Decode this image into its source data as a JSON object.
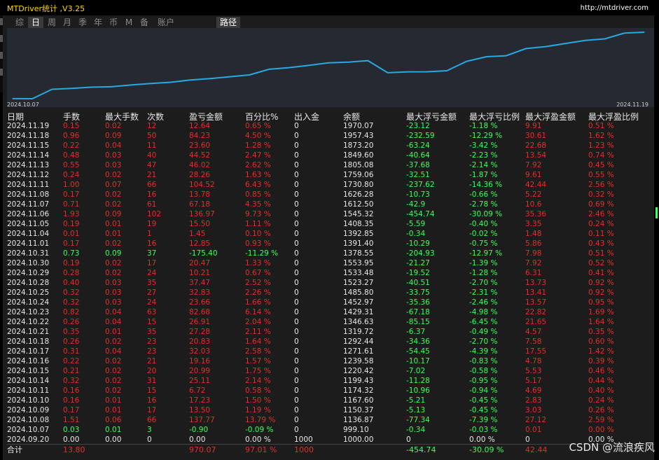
{
  "app": {
    "title": "MTDriver统计 ,V3.25",
    "url": "http://mtdriver.com",
    "watermark": "CSDN @流浪疾风"
  },
  "tabs": [
    {
      "label": "综",
      "active": false
    },
    {
      "label": "日",
      "active": true
    },
    {
      "label": "周",
      "active": false
    },
    {
      "label": "月",
      "active": false
    },
    {
      "label": "季",
      "active": false
    },
    {
      "label": "年",
      "active": false
    },
    {
      "label": "币",
      "active": false
    },
    {
      "label": "M",
      "active": false
    },
    {
      "label": "备",
      "active": false
    },
    {
      "label": "账户",
      "active": false
    },
    {
      "label": "路径",
      "active": true
    }
  ],
  "chart_data": {
    "type": "line",
    "x_start_label": "2024.10.07",
    "x_end_label": "2024.11.19",
    "x": [
      "2024.09.20",
      "2024.10.07",
      "2024.10.08",
      "2024.10.09",
      "2024.10.10",
      "2024.10.11",
      "2024.10.14",
      "2024.10.15",
      "2024.10.16",
      "2024.10.17",
      "2024.10.18",
      "2024.10.21",
      "2024.10.22",
      "2024.10.23",
      "2024.10.24",
      "2024.10.25",
      "2024.10.28",
      "2024.10.29",
      "2024.10.30",
      "2024.10.31",
      "2024.11.01",
      "2024.11.04",
      "2024.11.05",
      "2024.11.06",
      "2024.11.07",
      "2024.11.08",
      "2024.11.11",
      "2024.11.12",
      "2024.11.13",
      "2024.11.14",
      "2024.11.15",
      "2024.11.18",
      "2024.11.19"
    ],
    "values": [
      1000.0,
      999.1,
      1136.87,
      1150.37,
      1167.6,
      1174.32,
      1199.43,
      1220.42,
      1239.58,
      1271.61,
      1292.44,
      1319.72,
      1346.63,
      1429.31,
      1452.97,
      1485.8,
      1523.27,
      1533.48,
      1553.95,
      1378.55,
      1391.4,
      1392.85,
      1408.35,
      1545.32,
      1612.5,
      1626.28,
      1730.8,
      1759.06,
      1805.08,
      1849.6,
      1873.2,
      1957.43,
      1970.07
    ],
    "color": "#29a9e0"
  },
  "table": {
    "headers": [
      "日期",
      "手数",
      "最大手数",
      "次数",
      "盈亏金额",
      "百分比%",
      "出入金",
      "余额",
      "最大浮亏金额",
      "最大浮亏比例",
      "最大浮盈金额",
      "最大浮盈比例"
    ],
    "rows": [
      {
        "date": "2024.11.19",
        "lots": "0.15",
        "max_lots": "0.02",
        "count": "12",
        "pnl": "12.64",
        "pct": "0.65 %",
        "flow": "0",
        "balance": "1970.07",
        "max_dd": "-23.12",
        "max_dd_pct": "-1.18 %",
        "max_fp": "9.91",
        "max_fp_pct": "0.51 %",
        "tone": "red"
      },
      {
        "date": "2024.11.18",
        "lots": "0.96",
        "max_lots": "0.09",
        "count": "50",
        "pnl": "84.23",
        "pct": "4.50 %",
        "flow": "0",
        "balance": "1957.43",
        "max_dd": "-232.59",
        "max_dd_pct": "-12.29 %",
        "max_fp": "30.61",
        "max_fp_pct": "1.62 %",
        "tone": "red"
      },
      {
        "date": "2024.11.15",
        "lots": "0.22",
        "max_lots": "0.04",
        "count": "11",
        "pnl": "23.60",
        "pct": "1.28 %",
        "flow": "0",
        "balance": "1873.20",
        "max_dd": "-63.24",
        "max_dd_pct": "-3.42 %",
        "max_fp": "22.68",
        "max_fp_pct": "1.23 %",
        "tone": "red"
      },
      {
        "date": "2024.11.14",
        "lots": "0.48",
        "max_lots": "0.03",
        "count": "40",
        "pnl": "44.52",
        "pct": "2.47 %",
        "flow": "0",
        "balance": "1849.60",
        "max_dd": "-40.64",
        "max_dd_pct": "-2.23 %",
        "max_fp": "13.54",
        "max_fp_pct": "0.74 %",
        "tone": "red"
      },
      {
        "date": "2024.11.13",
        "lots": "0.55",
        "max_lots": "0.03",
        "count": "47",
        "pnl": "46.02",
        "pct": "2.62 %",
        "flow": "0",
        "balance": "1805.08",
        "max_dd": "-37.68",
        "max_dd_pct": "-2.14 %",
        "max_fp": "7.92",
        "max_fp_pct": "0.45 %",
        "tone": "red"
      },
      {
        "date": "2024.11.12",
        "lots": "0.24",
        "max_lots": "0.02",
        "count": "21",
        "pnl": "28.26",
        "pct": "1.63 %",
        "flow": "0",
        "balance": "1759.06",
        "max_dd": "-32.51",
        "max_dd_pct": "-1.87 %",
        "max_fp": "9.61",
        "max_fp_pct": "0.55 %",
        "tone": "red"
      },
      {
        "date": "2024.11.11",
        "lots": "1.00",
        "max_lots": "0.07",
        "count": "66",
        "pnl": "104.52",
        "pct": "6.43 %",
        "flow": "0",
        "balance": "1730.80",
        "max_dd": "-237.62",
        "max_dd_pct": "-14.36 %",
        "max_fp": "42.44",
        "max_fp_pct": "2.56 %",
        "tone": "red"
      },
      {
        "date": "2024.11.08",
        "lots": "0.17",
        "max_lots": "0.02",
        "count": "16",
        "pnl": "13.78",
        "pct": "0.85 %",
        "flow": "0",
        "balance": "1626.28",
        "max_dd": "-10.73",
        "max_dd_pct": "-0.66 %",
        "max_fp": "5.22",
        "max_fp_pct": "0.32 %",
        "tone": "red"
      },
      {
        "date": "2024.11.07",
        "lots": "0.71",
        "max_lots": "0.02",
        "count": "61",
        "pnl": "67.18",
        "pct": "4.35 %",
        "flow": "0",
        "balance": "1612.50",
        "max_dd": "-42.9",
        "max_dd_pct": "-2.78 %",
        "max_fp": "10.6",
        "max_fp_pct": "0.69 %",
        "tone": "red"
      },
      {
        "date": "2024.11.06",
        "lots": "1.93",
        "max_lots": "0.09",
        "count": "102",
        "pnl": "136.97",
        "pct": "9.73 %",
        "flow": "0",
        "balance": "1545.32",
        "max_dd": "-454.74",
        "max_dd_pct": "-30.09 %",
        "max_fp": "35.36",
        "max_fp_pct": "2.46 %",
        "tone": "red"
      },
      {
        "date": "2024.11.05",
        "lots": "0.19",
        "max_lots": "0.01",
        "count": "19",
        "pnl": "15.50",
        "pct": "1.11 %",
        "flow": "0",
        "balance": "1408.35",
        "max_dd": "-5.59",
        "max_dd_pct": "-0.40 %",
        "max_fp": "3.35",
        "max_fp_pct": "0.24 %",
        "tone": "red"
      },
      {
        "date": "2024.11.04",
        "lots": "0.01",
        "max_lots": "0.01",
        "count": "1",
        "pnl": "1.45",
        "pct": "0.10 %",
        "flow": "0",
        "balance": "1392.85",
        "max_dd": "-0.34",
        "max_dd_pct": "-0.02 %",
        "max_fp": "1.48",
        "max_fp_pct": "0.11 %",
        "tone": "red"
      },
      {
        "date": "2024.11.01",
        "lots": "0.17",
        "max_lots": "0.02",
        "count": "16",
        "pnl": "12.85",
        "pct": "0.93 %",
        "flow": "0",
        "balance": "1391.40",
        "max_dd": "-10.29",
        "max_dd_pct": "-0.75 %",
        "max_fp": "5.86",
        "max_fp_pct": "0.43 %",
        "tone": "red"
      },
      {
        "date": "2024.10.31",
        "lots": "0.73",
        "max_lots": "0.09",
        "count": "37",
        "pnl": "-175.40",
        "pct": "-11.29 %",
        "flow": "0",
        "balance": "1378.55",
        "max_dd": "-204.93",
        "max_dd_pct": "-12.97 %",
        "max_fp": "7.98",
        "max_fp_pct": "0.51 %",
        "tone": "green"
      },
      {
        "date": "2024.10.30",
        "lots": "0.19",
        "max_lots": "0.02",
        "count": "17",
        "pnl": "20.47",
        "pct": "1.33 %",
        "flow": "0",
        "balance": "1553.95",
        "max_dd": "-21.27",
        "max_dd_pct": "-1.39 %",
        "max_fp": "7.92",
        "max_fp_pct": "0.52 %",
        "tone": "red"
      },
      {
        "date": "2024.10.29",
        "lots": "0.28",
        "max_lots": "0.02",
        "count": "24",
        "pnl": "10.21",
        "pct": "0.67 %",
        "flow": "0",
        "balance": "1533.48",
        "max_dd": "-19.52",
        "max_dd_pct": "-1.28 %",
        "max_fp": "6.31",
        "max_fp_pct": "0.41 %",
        "tone": "red"
      },
      {
        "date": "2024.10.28",
        "lots": "0.40",
        "max_lots": "0.03",
        "count": "35",
        "pnl": "37.47",
        "pct": "2.52 %",
        "flow": "0",
        "balance": "1523.27",
        "max_dd": "-40.51",
        "max_dd_pct": "-2.70 %",
        "max_fp": "13.73",
        "max_fp_pct": "0.92 %",
        "tone": "red"
      },
      {
        "date": "2024.10.25",
        "lots": "0.32",
        "max_lots": "0.03",
        "count": "27",
        "pnl": "32.83",
        "pct": "2.26 %",
        "flow": "0",
        "balance": "1485.80",
        "max_dd": "-33.75",
        "max_dd_pct": "-2.31 %",
        "max_fp": "13.41",
        "max_fp_pct": "0.92 %",
        "tone": "red"
      },
      {
        "date": "2024.10.24",
        "lots": "0.32",
        "max_lots": "0.03",
        "count": "24",
        "pnl": "23.66",
        "pct": "1.66 %",
        "flow": "0",
        "balance": "1452.97",
        "max_dd": "-35.36",
        "max_dd_pct": "-2.46 %",
        "max_fp": "13.57",
        "max_fp_pct": "0.95 %",
        "tone": "red"
      },
      {
        "date": "2024.10.23",
        "lots": "0.82",
        "max_lots": "0.04",
        "count": "63",
        "pnl": "82.68",
        "pct": "6.14 %",
        "flow": "0",
        "balance": "1429.31",
        "max_dd": "-67.18",
        "max_dd_pct": "-4.98 %",
        "max_fp": "22.82",
        "max_fp_pct": "1.69 %",
        "tone": "red"
      },
      {
        "date": "2024.10.22",
        "lots": "0.26",
        "max_lots": "0.04",
        "count": "15",
        "pnl": "26.91",
        "pct": "2.04 %",
        "flow": "0",
        "balance": "1346.63",
        "max_dd": "-85.15",
        "max_dd_pct": "-6.45 %",
        "max_fp": "21.65",
        "max_fp_pct": "1.64 %",
        "tone": "red"
      },
      {
        "date": "2024.10.21",
        "lots": "0.35",
        "max_lots": "0.01",
        "count": "35",
        "pnl": "27.28",
        "pct": "2.11 %",
        "flow": "0",
        "balance": "1319.72",
        "max_dd": "-6.37",
        "max_dd_pct": "-0.49 %",
        "max_fp": "4.57",
        "max_fp_pct": "0.35 %",
        "tone": "red"
      },
      {
        "date": "2024.10.18",
        "lots": "0.26",
        "max_lots": "0.02",
        "count": "23",
        "pnl": "20.83",
        "pct": "1.64 %",
        "flow": "0",
        "balance": "1292.44",
        "max_dd": "-34.36",
        "max_dd_pct": "-2.70 %",
        "max_fp": "7.58",
        "max_fp_pct": "0.60 %",
        "tone": "red"
      },
      {
        "date": "2024.10.17",
        "lots": "0.31",
        "max_lots": "0.04",
        "count": "23",
        "pnl": "32.03",
        "pct": "2.58 %",
        "flow": "0",
        "balance": "1271.61",
        "max_dd": "-54.45",
        "max_dd_pct": "-4.39 %",
        "max_fp": "17.55",
        "max_fp_pct": "1.42 %",
        "tone": "red"
      },
      {
        "date": "2024.10.16",
        "lots": "0.22",
        "max_lots": "0.02",
        "count": "21",
        "pnl": "19.16",
        "pct": "1.57 %",
        "flow": "0",
        "balance": "1239.58",
        "max_dd": "-10.17",
        "max_dd_pct": "-0.83 %",
        "max_fp": "4.78",
        "max_fp_pct": "0.39 %",
        "tone": "red"
      },
      {
        "date": "2024.10.15",
        "lots": "0.21",
        "max_lots": "0.02",
        "count": "20",
        "pnl": "20.99",
        "pct": "1.75 %",
        "flow": "0",
        "balance": "1220.42",
        "max_dd": "-7.02",
        "max_dd_pct": "-0.58 %",
        "max_fp": "5.53",
        "max_fp_pct": "0.46 %",
        "tone": "red"
      },
      {
        "date": "2024.10.14",
        "lots": "0.32",
        "max_lots": "0.02",
        "count": "31",
        "pnl": "25.11",
        "pct": "2.14 %",
        "flow": "0",
        "balance": "1199.43",
        "max_dd": "-11.28",
        "max_dd_pct": "-0.95 %",
        "max_fp": "5.17",
        "max_fp_pct": "0.44 %",
        "tone": "red"
      },
      {
        "date": "2024.10.11",
        "lots": "0.16",
        "max_lots": "0.02",
        "count": "15",
        "pnl": "6.72",
        "pct": "0.58 %",
        "flow": "0",
        "balance": "1174.32",
        "max_dd": "-10.96",
        "max_dd_pct": "-0.94 %",
        "max_fp": "4.69",
        "max_fp_pct": "0.40 %",
        "tone": "red"
      },
      {
        "date": "2024.10.10",
        "lots": "0.16",
        "max_lots": "0.01",
        "count": "16",
        "pnl": "17.23",
        "pct": "1.50 %",
        "flow": "0",
        "balance": "1167.60",
        "max_dd": "-5.21",
        "max_dd_pct": "-0.45 %",
        "max_fp": "2.83",
        "max_fp_pct": "0.24 %",
        "tone": "red"
      },
      {
        "date": "2024.10.09",
        "lots": "0.17",
        "max_lots": "0.01",
        "count": "17",
        "pnl": "13.50",
        "pct": "1.19 %",
        "flow": "0",
        "balance": "1150.37",
        "max_dd": "-5.13",
        "max_dd_pct": "-0.45 %",
        "max_fp": "3.03",
        "max_fp_pct": "0.26 %",
        "tone": "red"
      },
      {
        "date": "2024.10.08",
        "lots": "1.51",
        "max_lots": "0.06",
        "count": "66",
        "pnl": "137.77",
        "pct": "13.79 %",
        "flow": "0",
        "balance": "1136.87",
        "max_dd": "-77.34",
        "max_dd_pct": "-7.39 %",
        "max_fp": "27.12",
        "max_fp_pct": "2.59 %",
        "tone": "red"
      },
      {
        "date": "2024.10.07",
        "lots": "0.03",
        "max_lots": "0.01",
        "count": "3",
        "pnl": "-0.90",
        "pct": "-0.09 %",
        "flow": "0",
        "balance": "999.10",
        "max_dd": "-0.34",
        "max_dd_pct": "-0.03 %",
        "max_fp": "0.01",
        "max_fp_pct": "0.00 %",
        "tone": "green"
      },
      {
        "date": "2024.09.20",
        "lots": "0.00",
        "max_lots": "0.00",
        "count": "0",
        "pnl": "0.00",
        "pct": "0.00 %",
        "flow": "1000",
        "balance": "1000.00",
        "max_dd": "0",
        "max_dd_pct": "0.00 %",
        "max_fp": "0",
        "max_fp_pct": "0.00 %",
        "tone": "white"
      }
    ],
    "total": {
      "label": "合计",
      "lots": "13.80",
      "pnl": "970.07",
      "pct": "97.01 %",
      "flow": "1000",
      "max_dd": "-454.74",
      "max_dd_pct": "-30.09 %",
      "max_fp": "42.44"
    }
  }
}
